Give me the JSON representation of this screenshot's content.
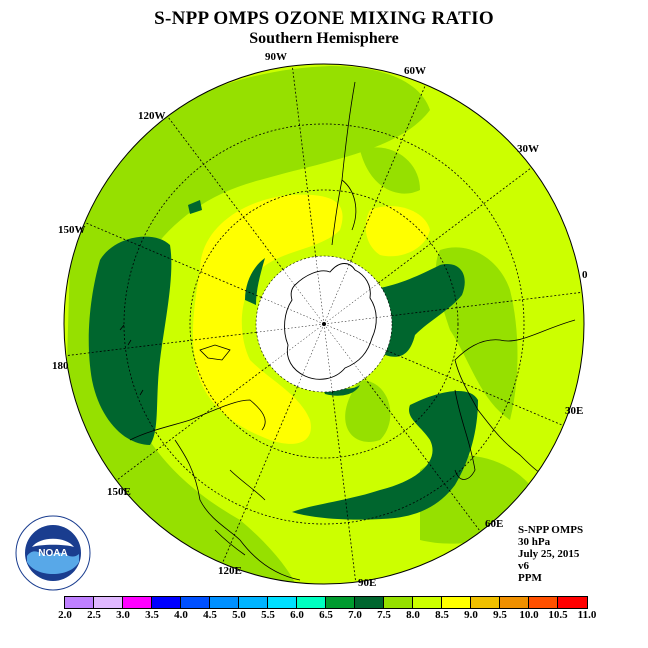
{
  "title": "S-NPP OMPS OZONE MIXING RATIO",
  "subtitle": "Southern Hemisphere",
  "longitude_labels": [
    "90W",
    "60W",
    "30W",
    "0",
    "30E",
    "60E",
    "90E",
    "120E",
    "150E",
    "180",
    "150W",
    "120W"
  ],
  "info": {
    "product": "S-NPP OMPS",
    "level": "30 hPa",
    "date": "July 25, 2015",
    "version": "v6",
    "units": "PPM"
  },
  "colorbar": {
    "ticks": [
      "2.0",
      "2.5",
      "3.0",
      "3.5",
      "4.0",
      "4.5",
      "5.0",
      "5.5",
      "6.0",
      "6.5",
      "7.0",
      "7.5",
      "8.0",
      "8.5",
      "9.0",
      "9.5",
      "10.0",
      "10.5",
      "11.0"
    ],
    "colors": [
      "#bf80ff",
      "#e0b8ff",
      "#ff00ff",
      "#0000ff",
      "#0050ff",
      "#0090ff",
      "#00b4ff",
      "#00e0ff",
      "#00ffc0",
      "#009b2e",
      "#00662e",
      "#96e000",
      "#ccff00",
      "#ffff00",
      "#f0c000",
      "#f09000",
      "#ff5000",
      "#ff0000",
      "#8b4513"
    ]
  },
  "logo": {
    "text": "NOAA",
    "ring_text": "NATIONAL OCEANIC AND ATMOSPHERIC ADMINISTRATION · U.S. DEPARTMENT OF COMMERCE"
  }
}
